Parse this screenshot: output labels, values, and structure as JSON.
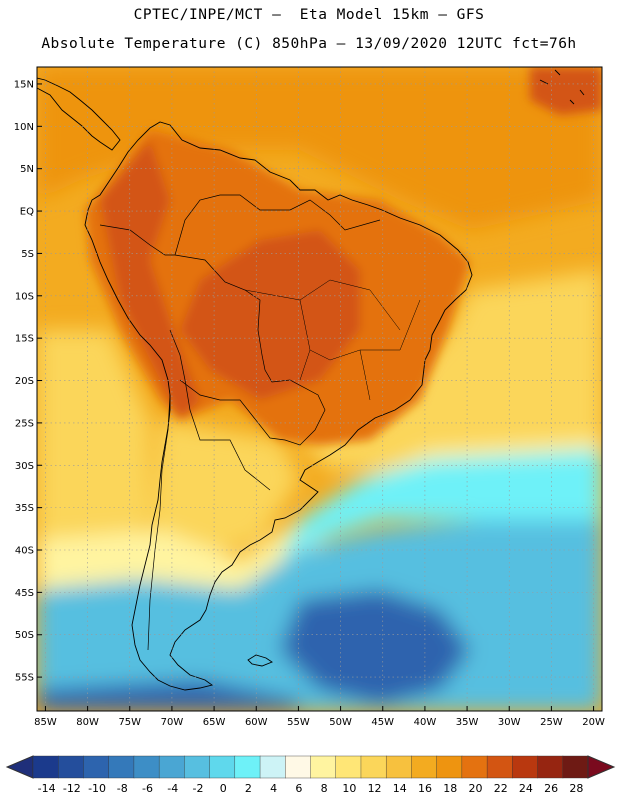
{
  "header": {
    "line1": "CPTEC/INPE/MCT –  Eta Model 15km – GFS",
    "line2": "Absolute Temperature (C) 850hPa – 13/09/2020 12UTC fct=76h"
  },
  "map": {
    "lon_range": [
      -86,
      -19
    ],
    "lat_range": [
      -59,
      17
    ],
    "lat_ticks": [
      {
        "value": 15,
        "label": "15N"
      },
      {
        "value": 10,
        "label": "10N"
      },
      {
        "value": 5,
        "label": "5N"
      },
      {
        "value": 0,
        "label": "EQ"
      },
      {
        "value": -5,
        "label": "5S"
      },
      {
        "value": -10,
        "label": "10S"
      },
      {
        "value": -15,
        "label": "15S"
      },
      {
        "value": -20,
        "label": "20S"
      },
      {
        "value": -25,
        "label": "25S"
      },
      {
        "value": -30,
        "label": "30S"
      },
      {
        "value": -35,
        "label": "35S"
      },
      {
        "value": -40,
        "label": "40S"
      },
      {
        "value": -45,
        "label": "45S"
      },
      {
        "value": -50,
        "label": "50S"
      },
      {
        "value": -55,
        "label": "55S"
      }
    ],
    "lon_ticks": [
      {
        "value": -85,
        "label": "85W"
      },
      {
        "value": -80,
        "label": "80W"
      },
      {
        "value": -75,
        "label": "75W"
      },
      {
        "value": -70,
        "label": "70W"
      },
      {
        "value": -65,
        "label": "65W"
      },
      {
        "value": -60,
        "label": "60W"
      },
      {
        "value": -55,
        "label": "55W"
      },
      {
        "value": -50,
        "label": "50W"
      },
      {
        "value": -45,
        "label": "45W"
      },
      {
        "value": -40,
        "label": "40W"
      },
      {
        "value": -35,
        "label": "35W"
      },
      {
        "value": -30,
        "label": "30W"
      },
      {
        "value": -25,
        "label": "25W"
      },
      {
        "value": -20,
        "label": "20W"
      }
    ]
  },
  "colorbar": {
    "labels": [
      "-14",
      "-12",
      "-10",
      "-8",
      "-6",
      "-4",
      "-2",
      "0",
      "2",
      "4",
      "6",
      "8",
      "10",
      "12",
      "14",
      "16",
      "18",
      "20",
      "22",
      "24",
      "26",
      "28"
    ],
    "colors": [
      "#1b3a8c",
      "#244e9c",
      "#2d64ae",
      "#3479ba",
      "#3d8ec6",
      "#4aa6d3",
      "#57bfe0",
      "#5fd8ec",
      "#6ef1f8",
      "#cdf3f6",
      "#fff9e6",
      "#fff4a0",
      "#ffe676",
      "#fbd65a",
      "#f7c13e",
      "#f3ab20",
      "#ee9410",
      "#e47210",
      "#d35512",
      "#b9380f",
      "#962511",
      "#6e1a14"
    ],
    "left_arrow_color": "#1f2f7a",
    "right_arrow_color": "#7a0a1e"
  },
  "field_colors": {
    "ocean_warm": "#f3ab20",
    "ocean_warmer": "#ee9410",
    "land_hot": "#e47210",
    "land_hotter": "#d35512",
    "subtropic": "#fbd65a",
    "subtropic_pale": "#fff4a0",
    "cold_front": "#6ef1f8",
    "mid_cold": "#57bfe0",
    "deep_cold": "#2d64ae"
  }
}
